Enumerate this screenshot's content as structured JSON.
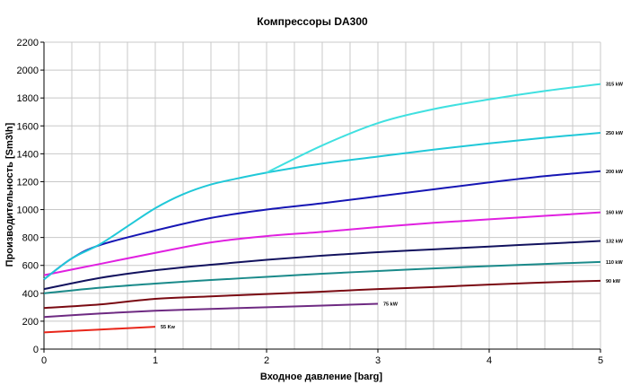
{
  "chart_data": {
    "type": "line",
    "title": "Компрессоры DA300",
    "xlabel": "Входное давление [barg]",
    "ylabel": "Производительность [Sm3\\h]",
    "xlim": [
      0,
      5
    ],
    "ylim": [
      0,
      2200
    ],
    "x_ticks": [
      "0",
      "1",
      "2",
      "3",
      "4",
      "5"
    ],
    "y_ticks": [
      "0",
      "200",
      "400",
      "600",
      "800",
      "1000",
      "1200",
      "1400",
      "1600",
      "1800",
      "2000",
      "2200"
    ],
    "grid": true,
    "legend": "labels at line ends",
    "series": [
      {
        "name": "55 Kw",
        "color": "#e8261a",
        "x": [
          0,
          0.5,
          1
        ],
        "y": [
          120,
          140,
          160
        ]
      },
      {
        "name": "75 kW",
        "color": "#6e2a82",
        "x": [
          0,
          0.5,
          1,
          1.5,
          2,
          2.5,
          3
        ],
        "y": [
          230,
          255,
          275,
          288,
          300,
          312,
          325
        ]
      },
      {
        "name": "90 kW",
        "color": "#7a0a12",
        "x": [
          0,
          0.5,
          1,
          1.5,
          2,
          2.5,
          3,
          3.5,
          4,
          4.5,
          5
        ],
        "y": [
          295,
          320,
          360,
          378,
          395,
          412,
          430,
          445,
          462,
          478,
          490
        ]
      },
      {
        "name": "110 kW",
        "color": "#1a8a8a",
        "x": [
          0,
          0.5,
          1,
          1.5,
          2,
          2.5,
          3,
          3.5,
          4,
          4.5,
          5
        ],
        "y": [
          400,
          440,
          470,
          495,
          518,
          540,
          560,
          578,
          595,
          610,
          625
        ]
      },
      {
        "name": "132 kW",
        "color": "#12125e",
        "x": [
          0,
          0.5,
          1,
          1.5,
          2,
          2.5,
          3,
          3.5,
          4,
          4.5,
          5
        ],
        "y": [
          430,
          510,
          565,
          605,
          640,
          670,
          695,
          715,
          735,
          755,
          775
        ]
      },
      {
        "name": "160 kW",
        "color": "#e020e0",
        "x": [
          0,
          0.5,
          1,
          1.5,
          2,
          2.5,
          3,
          3.5,
          4,
          4.5,
          5
        ],
        "y": [
          530,
          610,
          690,
          765,
          810,
          840,
          875,
          905,
          930,
          955,
          980
        ]
      },
      {
        "name": "200 kW",
        "color": "#1616b4",
        "x": [
          0,
          0.25,
          0.5,
          1,
          1.5,
          2,
          2.5,
          3,
          3.5,
          4,
          4.5,
          5
        ],
        "y": [
          500,
          650,
          745,
          850,
          940,
          1000,
          1045,
          1095,
          1145,
          1195,
          1240,
          1275
        ]
      },
      {
        "name": "250 kW",
        "color": "#20c8d8",
        "x": [
          0,
          0.25,
          0.5,
          0.75,
          1,
          1.25,
          1.5,
          1.75,
          2,
          2.5,
          3,
          3.5,
          4,
          4.5,
          5
        ],
        "y": [
          500,
          650,
          750,
          880,
          1010,
          1110,
          1180,
          1225,
          1265,
          1330,
          1380,
          1430,
          1475,
          1515,
          1550
        ]
      },
      {
        "name": "315 kW",
        "color": "#40e0e0",
        "x": [
          2,
          2.5,
          3,
          3.5,
          4,
          4.5,
          5
        ],
        "y": [
          1265,
          1460,
          1620,
          1720,
          1790,
          1850,
          1900
        ]
      }
    ]
  }
}
